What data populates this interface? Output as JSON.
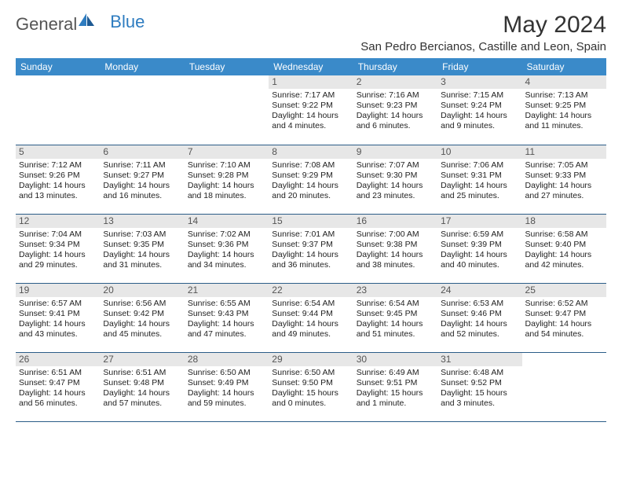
{
  "logo": {
    "text1": "General",
    "text2": "Blue"
  },
  "title": "May 2024",
  "location": "San Pedro Bercianos, Castille and Leon, Spain",
  "colors": {
    "header_bg": "#3a8ac9",
    "header_fg": "#ffffff",
    "daynum_bg": "#e7e7e7",
    "daynum_fg": "#555555",
    "row_border": "#2b5d88",
    "logo_gray": "#555555",
    "logo_blue": "#2e7cc0"
  },
  "weekdays": [
    "Sunday",
    "Monday",
    "Tuesday",
    "Wednesday",
    "Thursday",
    "Friday",
    "Saturday"
  ],
  "weeks": [
    [
      {
        "n": "",
        "sr": "",
        "ss": "",
        "dl": ""
      },
      {
        "n": "",
        "sr": "",
        "ss": "",
        "dl": ""
      },
      {
        "n": "",
        "sr": "",
        "ss": "",
        "dl": ""
      },
      {
        "n": "1",
        "sr": "Sunrise: 7:17 AM",
        "ss": "Sunset: 9:22 PM",
        "dl": "Daylight: 14 hours and 4 minutes."
      },
      {
        "n": "2",
        "sr": "Sunrise: 7:16 AM",
        "ss": "Sunset: 9:23 PM",
        "dl": "Daylight: 14 hours and 6 minutes."
      },
      {
        "n": "3",
        "sr": "Sunrise: 7:15 AM",
        "ss": "Sunset: 9:24 PM",
        "dl": "Daylight: 14 hours and 9 minutes."
      },
      {
        "n": "4",
        "sr": "Sunrise: 7:13 AM",
        "ss": "Sunset: 9:25 PM",
        "dl": "Daylight: 14 hours and 11 minutes."
      }
    ],
    [
      {
        "n": "5",
        "sr": "Sunrise: 7:12 AM",
        "ss": "Sunset: 9:26 PM",
        "dl": "Daylight: 14 hours and 13 minutes."
      },
      {
        "n": "6",
        "sr": "Sunrise: 7:11 AM",
        "ss": "Sunset: 9:27 PM",
        "dl": "Daylight: 14 hours and 16 minutes."
      },
      {
        "n": "7",
        "sr": "Sunrise: 7:10 AM",
        "ss": "Sunset: 9:28 PM",
        "dl": "Daylight: 14 hours and 18 minutes."
      },
      {
        "n": "8",
        "sr": "Sunrise: 7:08 AM",
        "ss": "Sunset: 9:29 PM",
        "dl": "Daylight: 14 hours and 20 minutes."
      },
      {
        "n": "9",
        "sr": "Sunrise: 7:07 AM",
        "ss": "Sunset: 9:30 PM",
        "dl": "Daylight: 14 hours and 23 minutes."
      },
      {
        "n": "10",
        "sr": "Sunrise: 7:06 AM",
        "ss": "Sunset: 9:31 PM",
        "dl": "Daylight: 14 hours and 25 minutes."
      },
      {
        "n": "11",
        "sr": "Sunrise: 7:05 AM",
        "ss": "Sunset: 9:33 PM",
        "dl": "Daylight: 14 hours and 27 minutes."
      }
    ],
    [
      {
        "n": "12",
        "sr": "Sunrise: 7:04 AM",
        "ss": "Sunset: 9:34 PM",
        "dl": "Daylight: 14 hours and 29 minutes."
      },
      {
        "n": "13",
        "sr": "Sunrise: 7:03 AM",
        "ss": "Sunset: 9:35 PM",
        "dl": "Daylight: 14 hours and 31 minutes."
      },
      {
        "n": "14",
        "sr": "Sunrise: 7:02 AM",
        "ss": "Sunset: 9:36 PM",
        "dl": "Daylight: 14 hours and 34 minutes."
      },
      {
        "n": "15",
        "sr": "Sunrise: 7:01 AM",
        "ss": "Sunset: 9:37 PM",
        "dl": "Daylight: 14 hours and 36 minutes."
      },
      {
        "n": "16",
        "sr": "Sunrise: 7:00 AM",
        "ss": "Sunset: 9:38 PM",
        "dl": "Daylight: 14 hours and 38 minutes."
      },
      {
        "n": "17",
        "sr": "Sunrise: 6:59 AM",
        "ss": "Sunset: 9:39 PM",
        "dl": "Daylight: 14 hours and 40 minutes."
      },
      {
        "n": "18",
        "sr": "Sunrise: 6:58 AM",
        "ss": "Sunset: 9:40 PM",
        "dl": "Daylight: 14 hours and 42 minutes."
      }
    ],
    [
      {
        "n": "19",
        "sr": "Sunrise: 6:57 AM",
        "ss": "Sunset: 9:41 PM",
        "dl": "Daylight: 14 hours and 43 minutes."
      },
      {
        "n": "20",
        "sr": "Sunrise: 6:56 AM",
        "ss": "Sunset: 9:42 PM",
        "dl": "Daylight: 14 hours and 45 minutes."
      },
      {
        "n": "21",
        "sr": "Sunrise: 6:55 AM",
        "ss": "Sunset: 9:43 PM",
        "dl": "Daylight: 14 hours and 47 minutes."
      },
      {
        "n": "22",
        "sr": "Sunrise: 6:54 AM",
        "ss": "Sunset: 9:44 PM",
        "dl": "Daylight: 14 hours and 49 minutes."
      },
      {
        "n": "23",
        "sr": "Sunrise: 6:54 AM",
        "ss": "Sunset: 9:45 PM",
        "dl": "Daylight: 14 hours and 51 minutes."
      },
      {
        "n": "24",
        "sr": "Sunrise: 6:53 AM",
        "ss": "Sunset: 9:46 PM",
        "dl": "Daylight: 14 hours and 52 minutes."
      },
      {
        "n": "25",
        "sr": "Sunrise: 6:52 AM",
        "ss": "Sunset: 9:47 PM",
        "dl": "Daylight: 14 hours and 54 minutes."
      }
    ],
    [
      {
        "n": "26",
        "sr": "Sunrise: 6:51 AM",
        "ss": "Sunset: 9:47 PM",
        "dl": "Daylight: 14 hours and 56 minutes."
      },
      {
        "n": "27",
        "sr": "Sunrise: 6:51 AM",
        "ss": "Sunset: 9:48 PM",
        "dl": "Daylight: 14 hours and 57 minutes."
      },
      {
        "n": "28",
        "sr": "Sunrise: 6:50 AM",
        "ss": "Sunset: 9:49 PM",
        "dl": "Daylight: 14 hours and 59 minutes."
      },
      {
        "n": "29",
        "sr": "Sunrise: 6:50 AM",
        "ss": "Sunset: 9:50 PM",
        "dl": "Daylight: 15 hours and 0 minutes."
      },
      {
        "n": "30",
        "sr": "Sunrise: 6:49 AM",
        "ss": "Sunset: 9:51 PM",
        "dl": "Daylight: 15 hours and 1 minute."
      },
      {
        "n": "31",
        "sr": "Sunrise: 6:48 AM",
        "ss": "Sunset: 9:52 PM",
        "dl": "Daylight: 15 hours and 3 minutes."
      },
      {
        "n": "",
        "sr": "",
        "ss": "",
        "dl": ""
      }
    ]
  ]
}
